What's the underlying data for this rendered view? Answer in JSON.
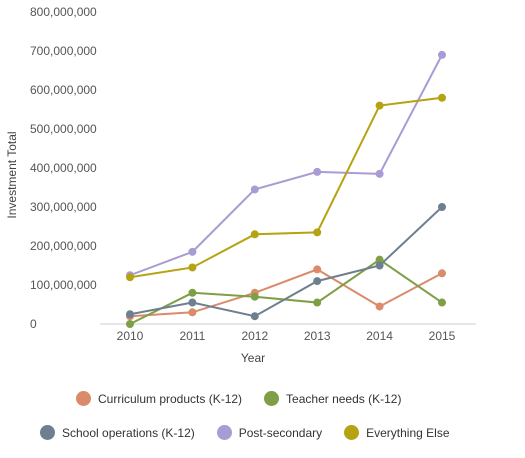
{
  "chart_data": {
    "type": "line",
    "title": "",
    "xlabel": "Year",
    "ylabel": "Investment Total",
    "x": [
      2010,
      2011,
      2012,
      2013,
      2014,
      2015
    ],
    "x_tick_labels": [
      "2010",
      "2011",
      "2012",
      "2013",
      "2014",
      "2015"
    ],
    "ylim": [
      0,
      800000000
    ],
    "y_ticks": [
      0,
      100000000,
      200000000,
      300000000,
      400000000,
      500000000,
      600000000,
      700000000,
      800000000
    ],
    "y_tick_labels": [
      "0",
      "100,000,000",
      "200,000,000",
      "300,000,000",
      "400,000,000",
      "500,000,000",
      "600,000,000",
      "700,000,000",
      "800,000,000"
    ],
    "grid": false,
    "legend_position": "bottom",
    "series": [
      {
        "name": "Curriculum products (K-12)",
        "color": "#d98b6a",
        "values": [
          20000000,
          30000000,
          80000000,
          140000000,
          45000000,
          130000000
        ]
      },
      {
        "name": "Teacher needs (K-12)",
        "color": "#7f9f46",
        "values": [
          0,
          80000000,
          70000000,
          55000000,
          165000000,
          55000000
        ]
      },
      {
        "name": "School operations (K-12)",
        "color": "#6e7f8f",
        "values": [
          25000000,
          55000000,
          20000000,
          110000000,
          150000000,
          300000000
        ]
      },
      {
        "name": "Post-secondary",
        "color": "#a99bd3",
        "values": [
          125000000,
          185000000,
          345000000,
          390000000,
          385000000,
          690000000
        ]
      },
      {
        "name": "Everything Else",
        "color": "#b5a311",
        "values": [
          120000000,
          145000000,
          230000000,
          235000000,
          560000000,
          580000000
        ]
      }
    ]
  }
}
